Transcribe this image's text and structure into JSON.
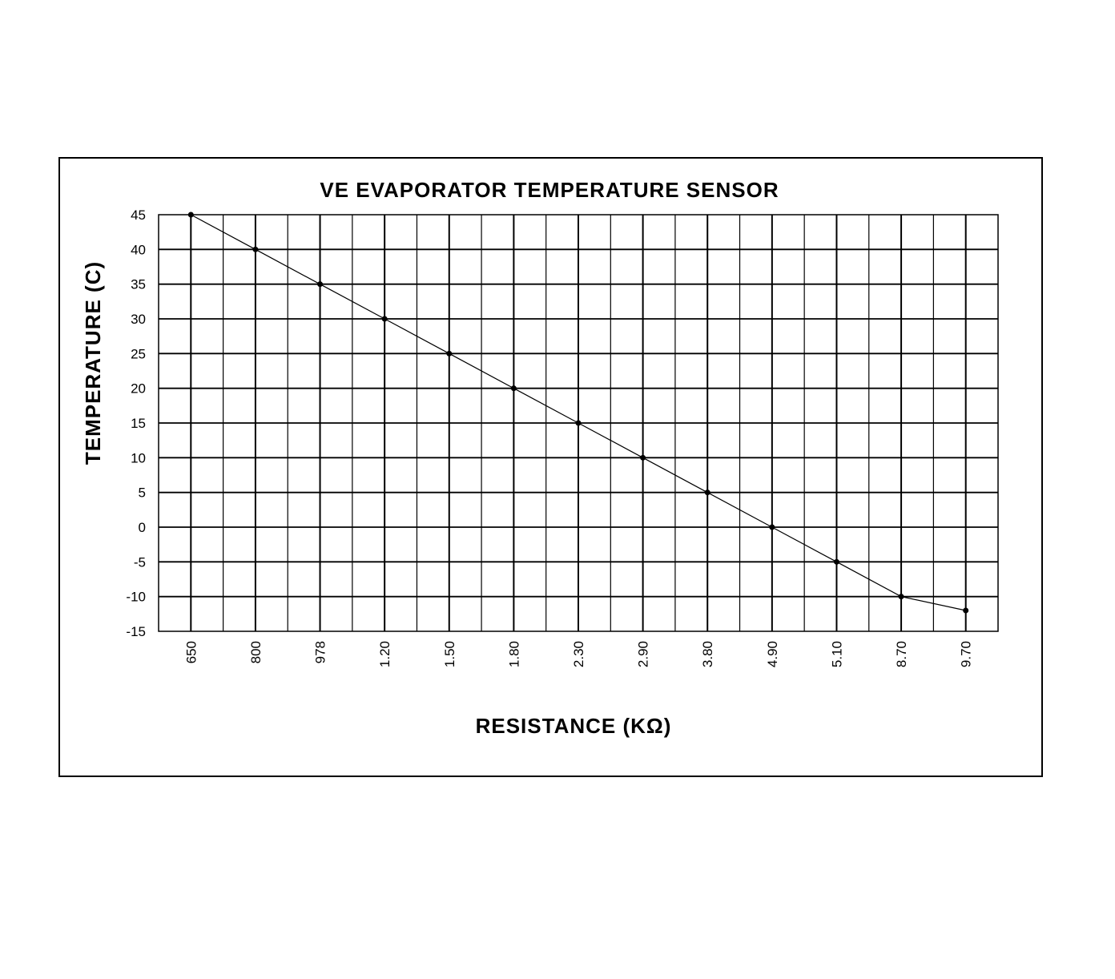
{
  "chart_data": {
    "type": "line",
    "title": "VE EVAPORATOR TEMPERATURE SENSOR",
    "xlabel": "RESISTANCE (KΩ)",
    "ylabel": "TEMPERATURE (C)",
    "categories": [
      "650",
      "800",
      "978",
      "1.20",
      "1.50",
      "1.80",
      "2.30",
      "2.90",
      "3.80",
      "4.90",
      "5.10",
      "8.70",
      "9.70"
    ],
    "series": [
      {
        "values": [
          45,
          40,
          35,
          30,
          25,
          20,
          15,
          10,
          5,
          0,
          -5,
          -10,
          -12
        ]
      }
    ],
    "ylim": [
      -15,
      45
    ],
    "yticks": [
      "45",
      "40",
      "35",
      "30",
      "25",
      "20",
      "15",
      "10",
      "5",
      "0",
      "-5",
      "-10",
      "-15"
    ],
    "grid": true,
    "legend": "none",
    "colors": {
      "line": "#000000",
      "grid": "#000000",
      "background": "#ffffff"
    }
  }
}
